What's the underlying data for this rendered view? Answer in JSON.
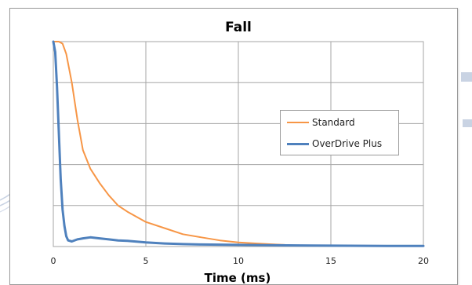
{
  "chart_data": {
    "type": "line",
    "title": "Fall",
    "xlabel": "Time (ms)",
    "ylabel": "",
    "xlim": [
      0,
      20
    ],
    "ylim": [
      0,
      1
    ],
    "x_ticks": [
      "0",
      "5",
      "10",
      "15",
      "20"
    ],
    "y_ticks": [],
    "grid": true,
    "legend_position": "right",
    "series": [
      {
        "name": "Standard",
        "color": "#F79646",
        "x": [
          0,
          0.3,
          0.5,
          0.7,
          1.0,
          1.3,
          1.6,
          2.0,
          2.5,
          3.0,
          3.5,
          4.0,
          5.0,
          6.0,
          7.0,
          8.0,
          9.0,
          10.0,
          11.0,
          12.0,
          12.5
        ],
        "y": [
          1.0,
          1.0,
          0.99,
          0.94,
          0.8,
          0.62,
          0.47,
          0.38,
          0.31,
          0.25,
          0.2,
          0.17,
          0.12,
          0.09,
          0.06,
          0.045,
          0.03,
          0.02,
          0.015,
          0.01,
          0.008
        ]
      },
      {
        "name": "OverDrive Plus",
        "color": "#4F81BD",
        "x": [
          0,
          0.1,
          0.2,
          0.3,
          0.4,
          0.5,
          0.6,
          0.7,
          0.8,
          1.0,
          1.3,
          1.6,
          2.0,
          2.5,
          3.0,
          3.5,
          4.0,
          5.0,
          6.0,
          7.0,
          8.0,
          10.0,
          12.0,
          14.0,
          16.0,
          18.0,
          20.0
        ],
        "y": [
          1.0,
          0.95,
          0.78,
          0.55,
          0.33,
          0.18,
          0.1,
          0.05,
          0.03,
          0.025,
          0.035,
          0.04,
          0.045,
          0.04,
          0.035,
          0.03,
          0.028,
          0.02,
          0.015,
          0.012,
          0.01,
          0.008,
          0.006,
          0.005,
          0.004,
          0.003,
          0.003
        ]
      }
    ]
  },
  "legend": {
    "standard_label": "Standard",
    "overdrive_label": "OverDrive Plus"
  },
  "colors": {
    "standard": "#F79646",
    "overdrive": "#4F81BD",
    "grid": "#A6A6A6",
    "decoration": "#C9D3E3"
  }
}
